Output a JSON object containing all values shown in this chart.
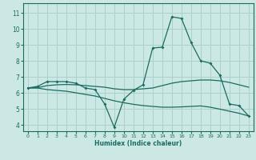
{
  "xlabel": "Humidex (Indice chaleur)",
  "ylabel": "",
  "bg_color": "#cce8e5",
  "grid_color": "#aad0cc",
  "line_color": "#1a6b60",
  "xlim": [
    -0.5,
    23.5
  ],
  "ylim": [
    3.6,
    11.6
  ],
  "xticks": [
    0,
    1,
    2,
    3,
    4,
    5,
    6,
    7,
    8,
    9,
    10,
    11,
    12,
    13,
    14,
    15,
    16,
    17,
    18,
    19,
    20,
    21,
    22,
    23
  ],
  "yticks": [
    4,
    5,
    6,
    7,
    8,
    9,
    10,
    11
  ],
  "line1_x": [
    0,
    1,
    2,
    3,
    4,
    5,
    6,
    7,
    8,
    9,
    10,
    11,
    12,
    13,
    14,
    15,
    16,
    17,
    18,
    19,
    20,
    21,
    22,
    23
  ],
  "line1_y": [
    6.3,
    6.4,
    6.7,
    6.7,
    6.7,
    6.6,
    6.3,
    6.2,
    5.3,
    3.85,
    5.6,
    6.15,
    6.5,
    8.8,
    8.85,
    10.75,
    10.65,
    9.15,
    8.0,
    7.85,
    7.1,
    5.3,
    5.2,
    4.55
  ],
  "line2_x": [
    0,
    1,
    2,
    3,
    4,
    5,
    6,
    7,
    8,
    9,
    10,
    11,
    12,
    13,
    14,
    15,
    16,
    17,
    18,
    19,
    20,
    21,
    22,
    23
  ],
  "line2_y": [
    6.3,
    6.32,
    6.45,
    6.5,
    6.52,
    6.5,
    6.45,
    6.4,
    6.35,
    6.25,
    6.2,
    6.2,
    6.25,
    6.3,
    6.45,
    6.6,
    6.7,
    6.75,
    6.8,
    6.8,
    6.75,
    6.65,
    6.5,
    6.35
  ],
  "line3_x": [
    0,
    1,
    2,
    3,
    4,
    5,
    6,
    7,
    8,
    9,
    10,
    11,
    12,
    13,
    14,
    15,
    16,
    17,
    18,
    19,
    20,
    21,
    22,
    23
  ],
  "line3_y": [
    6.3,
    6.3,
    6.2,
    6.15,
    6.1,
    6.0,
    5.9,
    5.8,
    5.65,
    5.5,
    5.38,
    5.28,
    5.2,
    5.15,
    5.1,
    5.1,
    5.12,
    5.15,
    5.18,
    5.1,
    4.98,
    4.85,
    4.72,
    4.55
  ]
}
